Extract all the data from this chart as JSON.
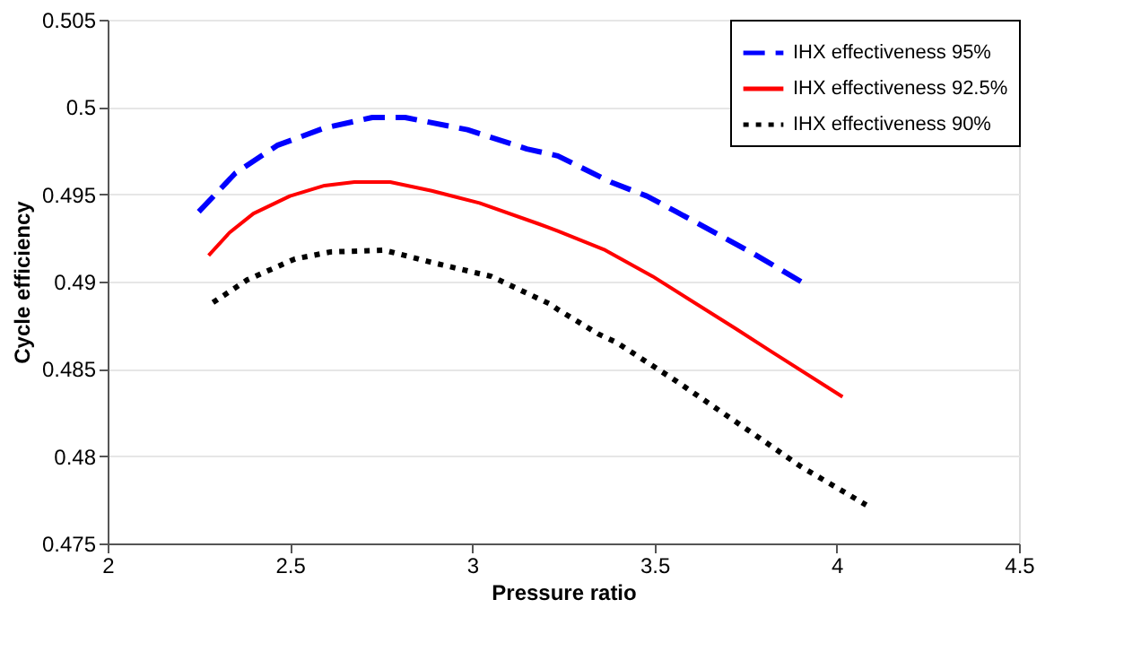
{
  "chart_data": {
    "type": "line",
    "xlabel": "Pressure ratio",
    "ylabel": "Cycle efficiency",
    "xlim": [
      2,
      4.5
    ],
    "xticks": [
      2,
      2.5,
      3,
      3.5,
      4,
      4.5
    ],
    "ylim": [
      0.475,
      0.505
    ],
    "yticks": [
      0.475,
      0.48,
      0.485,
      0.49,
      0.495,
      0.5,
      0.505
    ],
    "grid": "y",
    "legend": "top right",
    "marker": "none",
    "series": [
      {
        "name": "IHX effectiveness 95%",
        "color": "#0000ff",
        "line_style": "dashed",
        "x": [
          2.25,
          2.35,
          2.465,
          2.595,
          2.726,
          2.816,
          2.987,
          3.15,
          3.235,
          3.38,
          3.479,
          3.56,
          3.772,
          3.902
        ],
        "values": [
          0.494,
          0.4962,
          0.4978,
          0.4988,
          0.4994,
          0.4994,
          0.4987,
          0.4976,
          0.4972,
          0.4957,
          0.4949,
          0.494,
          0.4916,
          0.49
        ]
      },
      {
        "name": "IHX effectiveness 92.5%",
        "color": "#ff0000",
        "line_style": "solid",
        "x": [
          2.277,
          2.334,
          2.4,
          2.5,
          2.595,
          2.677,
          2.775,
          2.889,
          3.02,
          3.183,
          3.235,
          3.365,
          3.495,
          3.723,
          3.82,
          4.016
        ],
        "values": [
          0.4915,
          0.4928,
          0.4939,
          0.4949,
          0.4955,
          0.4957,
          0.4957,
          0.4952,
          0.4945,
          0.4933,
          0.4929,
          0.4918,
          0.4903,
          0.4873,
          0.486,
          0.4834
        ]
      },
      {
        "name": "IHX effectiveness 90%",
        "color": "#000000",
        "line_style": "dotted",
        "x": [
          2.289,
          2.383,
          2.514,
          2.612,
          2.758,
          2.889,
          3.052,
          3.215,
          3.235,
          3.346,
          3.397,
          3.56,
          3.756,
          3.902,
          4.081
        ],
        "values": [
          0.4888,
          0.4901,
          0.4913,
          0.4917,
          0.4918,
          0.4911,
          0.4903,
          0.4887,
          0.4884,
          0.487,
          0.4865,
          0.4843,
          0.4815,
          0.4794,
          0.4772
        ]
      }
    ]
  }
}
